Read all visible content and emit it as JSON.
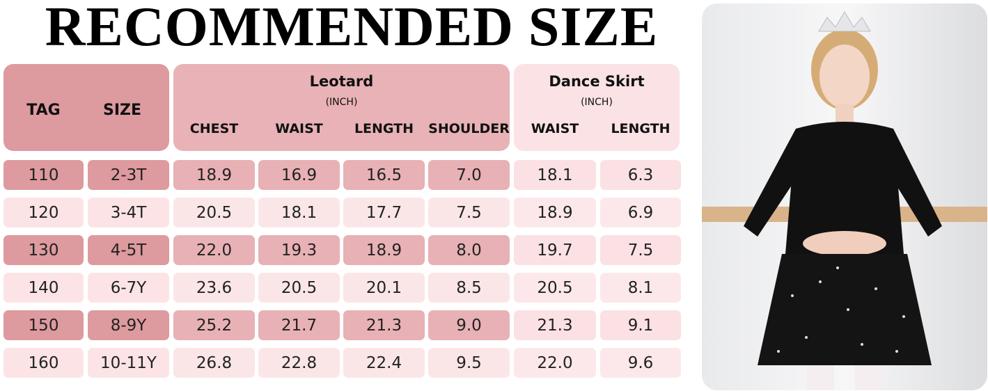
{
  "title": "RECOMMENDED SIZE",
  "header": {
    "tag": "TAG",
    "size": "SIZE",
    "leotard": {
      "title": "Leotard",
      "unit": "(INCH)",
      "columns": [
        "CHEST",
        "WAIST",
        "LENGTH",
        "SHOULDER"
      ]
    },
    "dance_skirt": {
      "title": "Dance Skirt",
      "unit": "(INCH)",
      "columns": [
        "WAIST",
        "LENGTH"
      ]
    }
  },
  "table": {
    "rows": [
      [
        "110",
        "2-3T",
        "18.9",
        "16.9",
        "16.5",
        "7.0",
        "18.1",
        "6.3"
      ],
      [
        "120",
        "3-4T",
        "20.5",
        "18.1",
        "17.7",
        "7.5",
        "18.9",
        "6.9"
      ],
      [
        "130",
        "4-5T",
        "22.0",
        "19.3",
        "18.9",
        "8.0",
        "19.7",
        "7.5"
      ],
      [
        "140",
        "6-7Y",
        "23.6",
        "20.5",
        "20.1",
        "8.5",
        "20.5",
        "8.1"
      ],
      [
        "150",
        "8-9Y",
        "25.2",
        "21.7",
        "21.3",
        "9.0",
        "21.3",
        "9.1"
      ],
      [
        "160",
        "10-11Y",
        "26.8",
        "22.8",
        "22.4",
        "9.5",
        "22.0",
        "9.6"
      ]
    ]
  }
}
